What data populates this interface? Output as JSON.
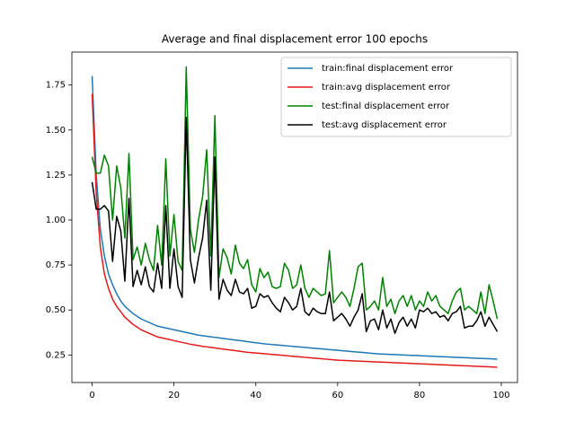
{
  "chart_data": {
    "type": "line",
    "title": "Average and final displacement error 100 epochs",
    "x": [
      0,
      1,
      2,
      3,
      4,
      5,
      6,
      7,
      8,
      9,
      10,
      11,
      12,
      13,
      14,
      15,
      16,
      17,
      18,
      19,
      20,
      21,
      22,
      23,
      24,
      25,
      26,
      27,
      28,
      29,
      30,
      31,
      32,
      33,
      34,
      35,
      36,
      37,
      38,
      39,
      40,
      41,
      42,
      43,
      44,
      45,
      46,
      47,
      48,
      49,
      50,
      51,
      52,
      53,
      54,
      55,
      56,
      57,
      58,
      59,
      60,
      61,
      62,
      63,
      64,
      65,
      66,
      67,
      68,
      69,
      70,
      71,
      72,
      73,
      74,
      75,
      76,
      77,
      78,
      79,
      80,
      81,
      82,
      83,
      84,
      85,
      86,
      87,
      88,
      89,
      90,
      91,
      92,
      93,
      94,
      95,
      96,
      97,
      98,
      99
    ],
    "series": [
      {
        "name": "train:final displacement error",
        "color": "#1f77b4",
        "values": [
          1.8,
          1.25,
          0.95,
          0.8,
          0.7,
          0.64,
          0.59,
          0.55,
          0.52,
          0.5,
          0.48,
          0.465,
          0.45,
          0.44,
          0.43,
          0.42,
          0.41,
          0.405,
          0.4,
          0.395,
          0.39,
          0.385,
          0.38,
          0.375,
          0.37,
          0.365,
          0.36,
          0.357,
          0.354,
          0.351,
          0.348,
          0.345,
          0.342,
          0.339,
          0.336,
          0.333,
          0.33,
          0.327,
          0.324,
          0.321,
          0.318,
          0.315,
          0.312,
          0.31,
          0.308,
          0.306,
          0.304,
          0.302,
          0.3,
          0.298,
          0.296,
          0.294,
          0.292,
          0.29,
          0.288,
          0.286,
          0.284,
          0.282,
          0.28,
          0.278,
          0.276,
          0.274,
          0.272,
          0.27,
          0.268,
          0.266,
          0.264,
          0.262,
          0.26,
          0.258,
          0.256,
          0.255,
          0.254,
          0.253,
          0.252,
          0.251,
          0.25,
          0.249,
          0.248,
          0.247,
          0.246,
          0.245,
          0.244,
          0.243,
          0.242,
          0.241,
          0.24,
          0.239,
          0.238,
          0.237,
          0.236,
          0.235,
          0.234,
          0.233,
          0.232,
          0.231,
          0.23,
          0.229,
          0.228,
          0.227
        ]
      },
      {
        "name": "train:avg displacement error",
        "color": "#e31a1c",
        "values": [
          1.7,
          1.15,
          0.85,
          0.7,
          0.62,
          0.56,
          0.52,
          0.49,
          0.46,
          0.44,
          0.42,
          0.405,
          0.39,
          0.38,
          0.37,
          0.36,
          0.35,
          0.345,
          0.34,
          0.335,
          0.33,
          0.325,
          0.32,
          0.315,
          0.31,
          0.306,
          0.302,
          0.298,
          0.295,
          0.292,
          0.289,
          0.286,
          0.283,
          0.28,
          0.277,
          0.274,
          0.271,
          0.268,
          0.265,
          0.263,
          0.261,
          0.259,
          0.257,
          0.255,
          0.253,
          0.251,
          0.249,
          0.247,
          0.245,
          0.243,
          0.241,
          0.239,
          0.237,
          0.235,
          0.233,
          0.231,
          0.229,
          0.227,
          0.225,
          0.223,
          0.221,
          0.22,
          0.219,
          0.218,
          0.217,
          0.216,
          0.215,
          0.214,
          0.213,
          0.212,
          0.211,
          0.21,
          0.209,
          0.208,
          0.207,
          0.206,
          0.205,
          0.204,
          0.203,
          0.202,
          0.201,
          0.2,
          0.199,
          0.198,
          0.197,
          0.196,
          0.195,
          0.194,
          0.193,
          0.192,
          0.191,
          0.19,
          0.189,
          0.188,
          0.187,
          0.186,
          0.185,
          0.184,
          0.183,
          0.182
        ]
      },
      {
        "name": "test:final displacement error",
        "color": "#008000",
        "values": [
          1.35,
          1.26,
          1.26,
          1.36,
          1.3,
          1.0,
          1.3,
          1.18,
          0.9,
          1.37,
          0.78,
          0.85,
          0.75,
          0.87,
          0.78,
          0.72,
          0.97,
          0.75,
          1.34,
          0.8,
          1.03,
          0.77,
          0.72,
          1.85,
          0.95,
          0.82,
          1.0,
          1.13,
          1.39,
          0.8,
          1.58,
          0.68,
          0.84,
          0.79,
          0.7,
          0.86,
          0.76,
          0.73,
          0.78,
          0.64,
          0.6,
          0.73,
          0.68,
          0.71,
          0.63,
          0.62,
          0.63,
          0.76,
          0.72,
          0.62,
          0.64,
          0.75,
          0.62,
          0.57,
          0.62,
          0.6,
          0.58,
          0.59,
          0.83,
          0.54,
          0.57,
          0.6,
          0.57,
          0.52,
          0.62,
          0.74,
          0.76,
          0.5,
          0.52,
          0.55,
          0.5,
          0.68,
          0.52,
          0.56,
          0.48,
          0.55,
          0.58,
          0.52,
          0.58,
          0.5,
          0.55,
          0.52,
          0.6,
          0.55,
          0.58,
          0.52,
          0.5,
          0.48,
          0.55,
          0.6,
          0.62,
          0.5,
          0.52,
          0.5,
          0.48,
          0.6,
          0.48,
          0.64,
          0.55,
          0.45
        ]
      },
      {
        "name": "test:avg displacement error",
        "color": "#000000",
        "values": [
          1.21,
          1.06,
          1.06,
          1.08,
          1.05,
          0.77,
          1.02,
          0.94,
          0.66,
          1.12,
          0.63,
          0.72,
          0.64,
          0.74,
          0.63,
          0.6,
          0.76,
          0.62,
          1.08,
          0.62,
          0.84,
          0.63,
          0.57,
          1.57,
          0.78,
          0.65,
          0.79,
          0.9,
          1.11,
          0.61,
          1.35,
          0.56,
          0.67,
          0.61,
          0.58,
          0.67,
          0.6,
          0.59,
          0.62,
          0.51,
          0.52,
          0.59,
          0.57,
          0.58,
          0.54,
          0.51,
          0.49,
          0.57,
          0.54,
          0.5,
          0.52,
          0.62,
          0.49,
          0.47,
          0.51,
          0.49,
          0.48,
          0.48,
          0.6,
          0.44,
          0.46,
          0.48,
          0.45,
          0.41,
          0.46,
          0.5,
          0.59,
          0.38,
          0.44,
          0.45,
          0.39,
          0.5,
          0.4,
          0.45,
          0.37,
          0.43,
          0.46,
          0.41,
          0.45,
          0.4,
          0.5,
          0.49,
          0.51,
          0.48,
          0.49,
          0.46,
          0.47,
          0.44,
          0.48,
          0.49,
          0.52,
          0.4,
          0.41,
          0.41,
          0.44,
          0.49,
          0.41,
          0.46,
          0.42,
          0.38
        ]
      }
    ],
    "xlim": [
      -4.95,
      103.95
    ],
    "ylim": [
      0.097,
      1.933
    ],
    "xticks": [
      0,
      20,
      40,
      60,
      80,
      100
    ],
    "yticks": [
      0.25,
      {
        "value": 0.5,
        "label": "0.50"
      },
      0.75,
      {
        "value": 1.0,
        "label": "1.00"
      },
      1.25,
      {
        "value": 1.5,
        "label": "1.50"
      },
      1.75
    ],
    "legend": "upper right"
  }
}
